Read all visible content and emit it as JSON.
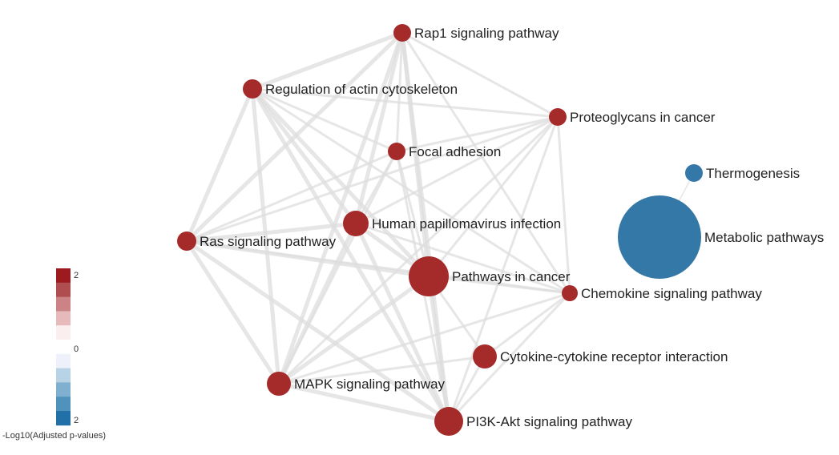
{
  "colors": {
    "up_dark": "#a4292c",
    "up_node": "#a52a2a",
    "down_node": "#3478a8",
    "edge": "#dedede"
  },
  "nodes": [
    {
      "id": "rap1",
      "label": "Rap1 signaling pathway",
      "direction": "up"
    },
    {
      "id": "actin",
      "label": "Regulation of actin cytoskeleton",
      "direction": "up"
    },
    {
      "id": "proteo",
      "label": "Proteoglycans in cancer",
      "direction": "up"
    },
    {
      "id": "focal",
      "label": "Focal adhesion",
      "direction": "up"
    },
    {
      "id": "thermo",
      "label": "Thermogenesis",
      "direction": "down"
    },
    {
      "id": "hpv",
      "label": "Human papillomavirus infection",
      "direction": "up"
    },
    {
      "id": "ras",
      "label": "Ras signaling pathway",
      "direction": "up"
    },
    {
      "id": "metab",
      "label": "Metabolic pathways",
      "direction": "down"
    },
    {
      "id": "cancer",
      "label": "Pathways in cancer",
      "direction": "up"
    },
    {
      "id": "chemo",
      "label": "Chemokine signaling pathway",
      "direction": "up"
    },
    {
      "id": "cytokine",
      "label": "Cytokine-cytokine receptor interaction",
      "direction": "up"
    },
    {
      "id": "mapk",
      "label": "MAPK signaling pathway",
      "direction": "up"
    },
    {
      "id": "pi3k",
      "label": "PI3K-Akt signaling pathway",
      "direction": "up"
    }
  ],
  "edges": [
    [
      "rap1",
      "actin"
    ],
    [
      "rap1",
      "proteo"
    ],
    [
      "rap1",
      "focal"
    ],
    [
      "rap1",
      "hpv"
    ],
    [
      "rap1",
      "ras"
    ],
    [
      "rap1",
      "cancer"
    ],
    [
      "rap1",
      "chemo"
    ],
    [
      "rap1",
      "mapk"
    ],
    [
      "rap1",
      "pi3k"
    ],
    [
      "actin",
      "proteo"
    ],
    [
      "actin",
      "focal"
    ],
    [
      "actin",
      "hpv"
    ],
    [
      "actin",
      "ras"
    ],
    [
      "actin",
      "cancer"
    ],
    [
      "actin",
      "chemo"
    ],
    [
      "actin",
      "mapk"
    ],
    [
      "actin",
      "pi3k"
    ],
    [
      "proteo",
      "focal"
    ],
    [
      "proteo",
      "hpv"
    ],
    [
      "proteo",
      "ras"
    ],
    [
      "proteo",
      "cancer"
    ],
    [
      "proteo",
      "chemo"
    ],
    [
      "proteo",
      "mapk"
    ],
    [
      "proteo",
      "pi3k"
    ],
    [
      "focal",
      "hpv"
    ],
    [
      "focal",
      "ras"
    ],
    [
      "focal",
      "cancer"
    ],
    [
      "focal",
      "mapk"
    ],
    [
      "focal",
      "pi3k"
    ],
    [
      "hpv",
      "ras"
    ],
    [
      "hpv",
      "cancer"
    ],
    [
      "hpv",
      "chemo"
    ],
    [
      "hpv",
      "mapk"
    ],
    [
      "hpv",
      "pi3k"
    ],
    [
      "ras",
      "cancer"
    ],
    [
      "ras",
      "chemo"
    ],
    [
      "ras",
      "mapk"
    ],
    [
      "ras",
      "pi3k"
    ],
    [
      "cancer",
      "chemo"
    ],
    [
      "cancer",
      "cytokine"
    ],
    [
      "cancer",
      "mapk"
    ],
    [
      "cancer",
      "pi3k"
    ],
    [
      "chemo",
      "cytokine"
    ],
    [
      "chemo",
      "mapk"
    ],
    [
      "chemo",
      "pi3k"
    ],
    [
      "cytokine",
      "pi3k"
    ],
    [
      "cytokine",
      "mapk"
    ],
    [
      "mapk",
      "pi3k"
    ],
    [
      "metab",
      "thermo"
    ]
  ],
  "legend": {
    "title": "-Log10(Adjusted p-values)",
    "top_label": "2",
    "mid_label": "0",
    "bottom_label": "2",
    "swatches": [
      "#9b1b1e",
      "#b04d50",
      "#cb8385",
      "#e6b9ba",
      "#fbeeee",
      "#ffffff",
      "#eef0fa",
      "#b8d3e6",
      "#7fb0cf",
      "#4f93bd",
      "#2171a8"
    ]
  }
}
